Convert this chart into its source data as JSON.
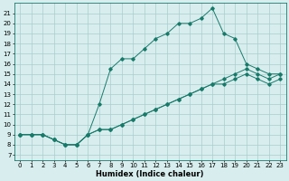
{
  "xlabel": "Humidex (Indice chaleur)",
  "ylabel": "",
  "xlim": [
    -0.5,
    23.5
  ],
  "ylim": [
    6.5,
    22.0
  ],
  "xticks": [
    0,
    1,
    2,
    3,
    4,
    5,
    6,
    7,
    8,
    9,
    10,
    11,
    12,
    13,
    14,
    15,
    16,
    17,
    18,
    19,
    20,
    21,
    22,
    23
  ],
  "yticks": [
    7,
    8,
    9,
    10,
    11,
    12,
    13,
    14,
    15,
    16,
    17,
    18,
    19,
    20,
    21
  ],
  "line_color": "#1a7a6a",
  "bg_color": "#d8eeee",
  "grid_color": "#aacece",
  "lines": [
    {
      "x": [
        0,
        1,
        2,
        3,
        4,
        5,
        6,
        7,
        8,
        9,
        10,
        11,
        12,
        13,
        14,
        15,
        16,
        17,
        18,
        19,
        20,
        21,
        22,
        23
      ],
      "y": [
        9.0,
        9.0,
        9.0,
        8.5,
        8.0,
        8.0,
        9.0,
        12.0,
        15.5,
        16.5,
        16.5,
        17.5,
        18.5,
        19.0,
        20.0,
        20.0,
        20.5,
        21.5,
        19.0,
        18.5,
        16.0,
        15.5,
        15.0,
        15.0
      ]
    },
    {
      "x": [
        0,
        1,
        2,
        3,
        4,
        5,
        6,
        7,
        8,
        9,
        10,
        11,
        12,
        13,
        14,
        15,
        16,
        17,
        18,
        19,
        20,
        21,
        22,
        23
      ],
      "y": [
        9.0,
        9.0,
        9.0,
        8.5,
        8.0,
        8.0,
        9.0,
        9.5,
        9.5,
        10.0,
        10.5,
        11.0,
        11.5,
        12.0,
        12.5,
        13.0,
        13.5,
        14.0,
        14.5,
        15.0,
        15.5,
        15.0,
        14.5,
        15.0
      ]
    },
    {
      "x": [
        0,
        1,
        2,
        3,
        4,
        5,
        6,
        7,
        8,
        9,
        10,
        11,
        12,
        13,
        14,
        15,
        16,
        17,
        18,
        19,
        20,
        21,
        22,
        23
      ],
      "y": [
        9.0,
        9.0,
        9.0,
        8.5,
        8.0,
        8.0,
        9.0,
        9.5,
        9.5,
        10.0,
        10.5,
        11.0,
        11.5,
        12.0,
        12.5,
        13.0,
        13.5,
        14.0,
        14.0,
        14.5,
        15.0,
        14.5,
        14.0,
        14.5
      ]
    }
  ],
  "tick_fontsize": 5,
  "xlabel_fontsize": 6,
  "marker_size": 1.8,
  "linewidth": 0.7
}
